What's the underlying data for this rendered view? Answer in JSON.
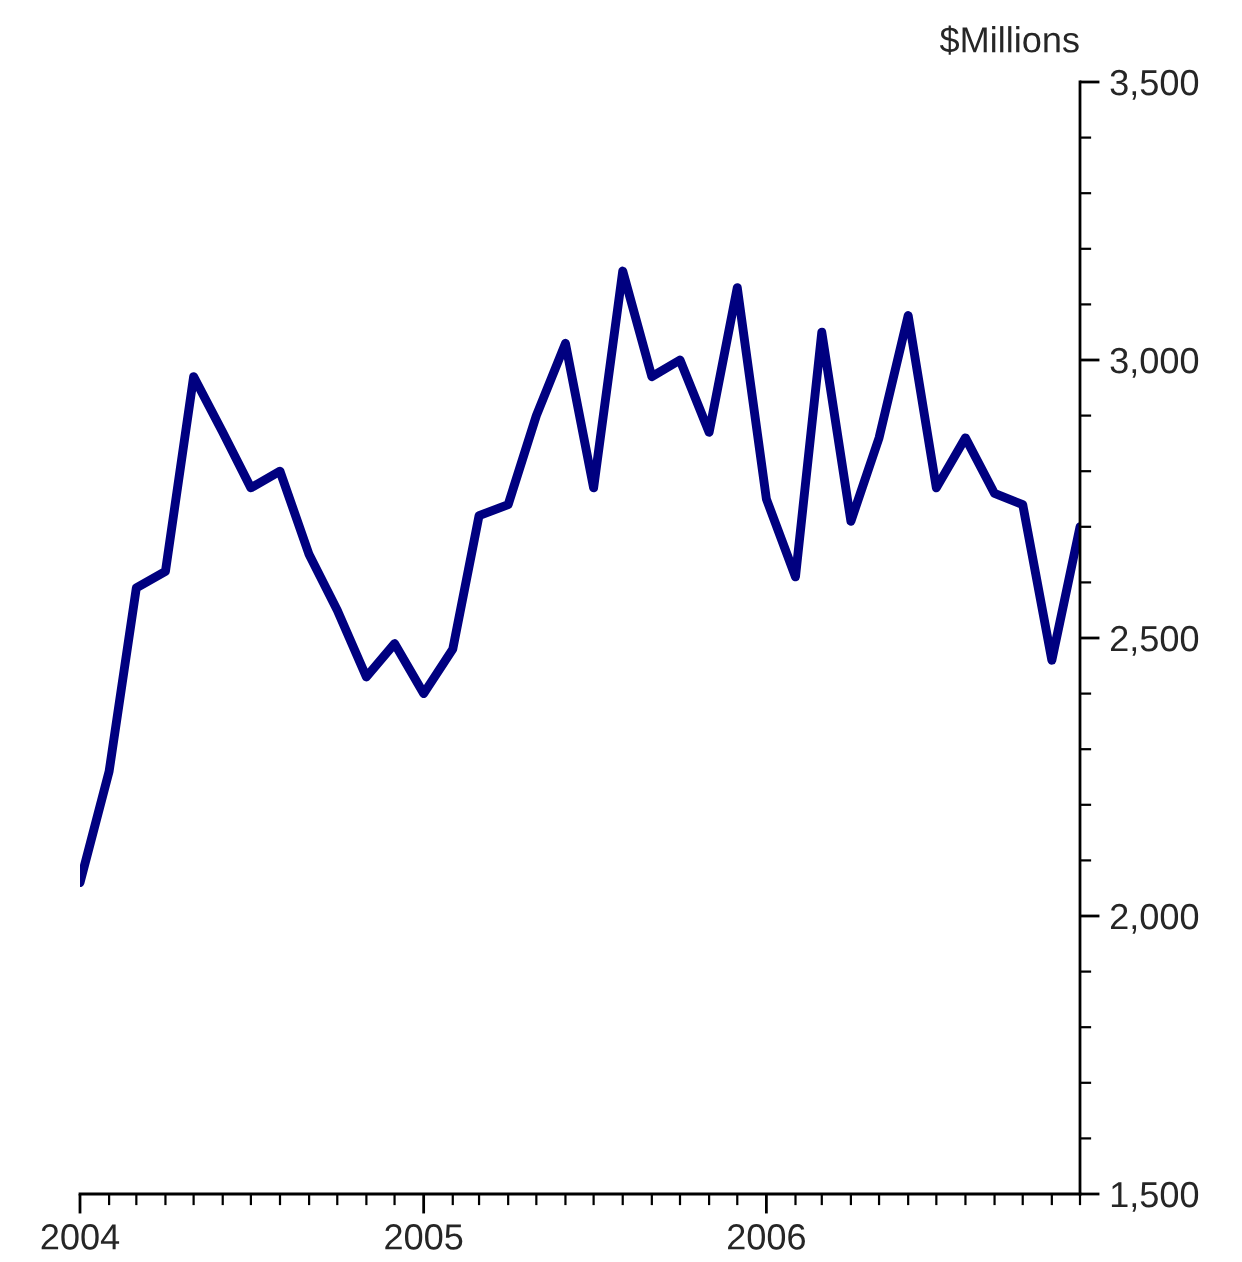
{
  "chart_data": {
    "type": "line",
    "ylabel": "$Millions",
    "x": [
      "2004-01",
      "2004-02",
      "2004-03",
      "2004-04",
      "2004-05",
      "2004-06",
      "2004-07",
      "2004-08",
      "2004-09",
      "2004-10",
      "2004-11",
      "2004-12",
      "2005-01",
      "2005-02",
      "2005-03",
      "2005-04",
      "2005-05",
      "2005-06",
      "2005-07",
      "2005-08",
      "2005-09",
      "2005-10",
      "2005-11",
      "2005-12",
      "2006-01",
      "2006-02",
      "2006-03",
      "2006-04",
      "2006-05",
      "2006-06",
      "2006-07",
      "2006-08",
      "2006-09",
      "2006-10",
      "2006-11",
      "2006-12"
    ],
    "series": [
      {
        "color": "#000080",
        "values": [
          2060,
          2260,
          2590,
          2620,
          2970,
          2870,
          2770,
          2800,
          2650,
          2550,
          2430,
          2490,
          2400,
          2480,
          2720,
          2740,
          2900,
          3030,
          2770,
          3160,
          2970,
          3000,
          2870,
          3130,
          2750,
          2610,
          3050,
          2710,
          2860,
          3080,
          2770,
          2860,
          2760,
          2740,
          2460,
          2700
        ]
      }
    ],
    "xlim": [
      "2004-01",
      "2006-12"
    ],
    "xticks": [
      {
        "value": "2004-01",
        "label": "2004"
      },
      {
        "value": "2004-02",
        "label": null
      },
      {
        "value": "2004-03",
        "label": null
      },
      {
        "value": "2004-04",
        "label": null
      },
      {
        "value": "2004-05",
        "label": null
      },
      {
        "value": "2004-06",
        "label": null
      },
      {
        "value": "2004-07",
        "label": null
      },
      {
        "value": "2004-08",
        "label": null
      },
      {
        "value": "2004-09",
        "label": null
      },
      {
        "value": "2004-10",
        "label": null
      },
      {
        "value": "2004-11",
        "label": null
      },
      {
        "value": "2004-12",
        "label": null
      },
      {
        "value": "2005-01",
        "label": "2005"
      },
      {
        "value": "2005-02",
        "label": null
      },
      {
        "value": "2005-03",
        "label": null
      },
      {
        "value": "2005-04",
        "label": null
      },
      {
        "value": "2005-05",
        "label": null
      },
      {
        "value": "2005-06",
        "label": null
      },
      {
        "value": "2005-07",
        "label": null
      },
      {
        "value": "2005-08",
        "label": null
      },
      {
        "value": "2005-09",
        "label": null
      },
      {
        "value": "2005-10",
        "label": null
      },
      {
        "value": "2005-11",
        "label": null
      },
      {
        "value": "2005-12",
        "label": null
      },
      {
        "value": "2006-01",
        "label": "2006"
      },
      {
        "value": "2006-02",
        "label": null
      },
      {
        "value": "2006-03",
        "label": null
      },
      {
        "value": "2006-04",
        "label": null
      },
      {
        "value": "2006-05",
        "label": null
      },
      {
        "value": "2006-06",
        "label": null
      },
      {
        "value": "2006-07",
        "label": null
      },
      {
        "value": "2006-08",
        "label": null
      },
      {
        "value": "2006-09",
        "label": null
      },
      {
        "value": "2006-10",
        "label": null
      },
      {
        "value": "2006-11",
        "label": null
      },
      {
        "value": "2006-12",
        "label": null
      }
    ],
    "ylim": [
      1500,
      3500
    ],
    "yticks": [
      {
        "value": 1500,
        "label": "1,500"
      },
      {
        "value": 1600,
        "label": null
      },
      {
        "value": 1700,
        "label": null
      },
      {
        "value": 1800,
        "label": null
      },
      {
        "value": 1900,
        "label": null
      },
      {
        "value": 2000,
        "label": "2,000"
      },
      {
        "value": 2100,
        "label": null
      },
      {
        "value": 2200,
        "label": null
      },
      {
        "value": 2300,
        "label": null
      },
      {
        "value": 2400,
        "label": null
      },
      {
        "value": 2500,
        "label": "2,500"
      },
      {
        "value": 2600,
        "label": null
      },
      {
        "value": 2700,
        "label": null
      },
      {
        "value": 2800,
        "label": null
      },
      {
        "value": 2900,
        "label": null
      },
      {
        "value": 3000,
        "label": "3,000"
      },
      {
        "value": 3100,
        "label": null
      },
      {
        "value": 3200,
        "label": null
      },
      {
        "value": 3300,
        "label": null
      },
      {
        "value": 3400,
        "label": null
      },
      {
        "value": 3500,
        "label": "3,500"
      }
    ],
    "grid": false,
    "legend": false,
    "marker": "none",
    "line_style": "solid"
  }
}
